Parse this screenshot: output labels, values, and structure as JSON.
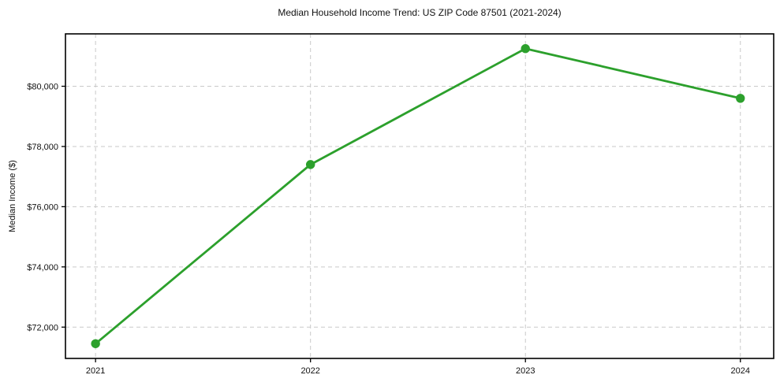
{
  "chart_data": {
    "type": "line",
    "title": "Median Household Income Trend: US ZIP Code 87501 (2021-2024)",
    "ylabel": "Median Income ($)",
    "xlabel": "",
    "x": [
      2021,
      2022,
      2023,
      2024
    ],
    "x_tick_labels": [
      "2021",
      "2022",
      "2023",
      "2024"
    ],
    "y": [
      71450,
      77400,
      81250,
      79600
    ],
    "xlim": [
      2020.86,
      2024.155
    ],
    "ylim": [
      70960,
      81740
    ],
    "yticks": [
      72000,
      74000,
      76000,
      78000,
      80000
    ],
    "ytick_labels": [
      "$72,000",
      "$74,000",
      "$76,000",
      "$78,000",
      "$80,000"
    ],
    "grid": true,
    "grid_style": "dashed",
    "legend": false,
    "colors": {
      "line": "#2ca02c",
      "marker": "#2ca02c",
      "grid": "#c9c9c9",
      "spine": "#000000",
      "tick_text": "#111111",
      "background": "#ffffff"
    }
  }
}
